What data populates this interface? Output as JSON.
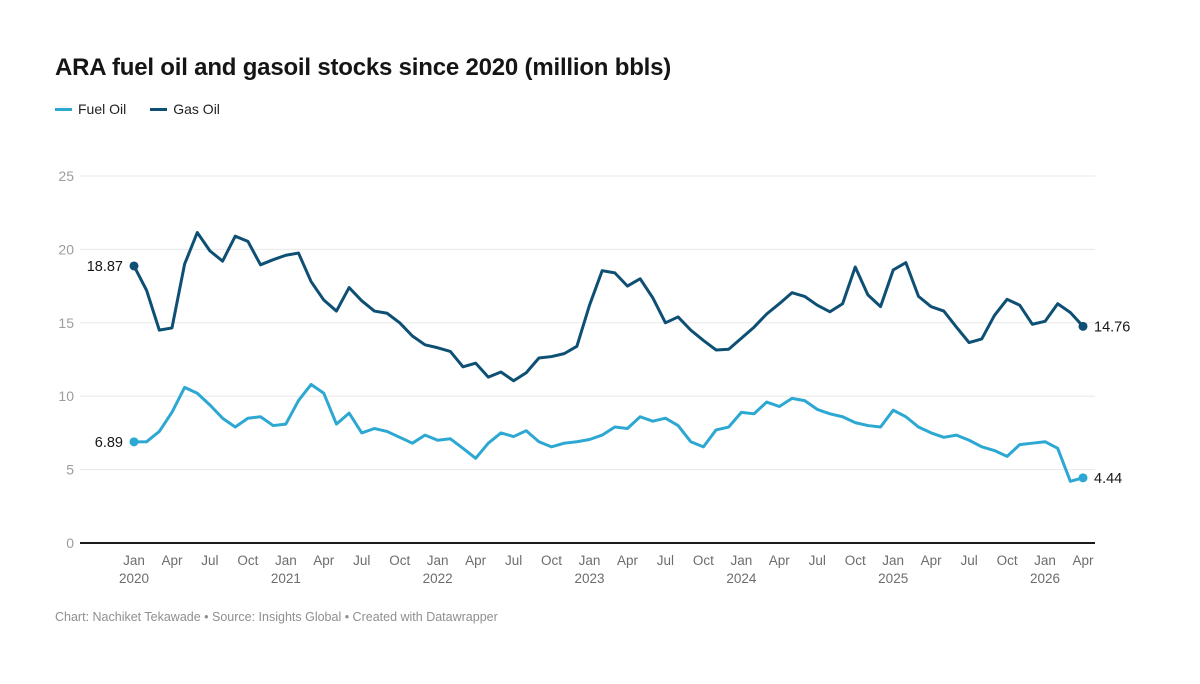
{
  "header": {
    "title": "ARA fuel oil and gasoil stocks since 2020 (million bbls)"
  },
  "legend": [
    {
      "label": "Fuel Oil",
      "color": "#2ca8d2"
    },
    {
      "label": "Gas Oil",
      "color": "#0e4f74"
    }
  ],
  "chart_data": {
    "type": "line",
    "title": "ARA fuel oil and gasoil stocks since 2020 (million bbls)",
    "xlabel": "",
    "ylabel": "",
    "frequency": "monthly",
    "x_start": "2020-01",
    "x_end": "2026-04",
    "ylim": [
      0,
      25
    ],
    "yticks": [
      0,
      5,
      10,
      15,
      20,
      25
    ],
    "grid": "horizontal",
    "legend_position": "top-left",
    "x_ticks": [
      {
        "month_index": 0,
        "label": "Jan",
        "year": "2020"
      },
      {
        "month_index": 3,
        "label": "Apr"
      },
      {
        "month_index": 6,
        "label": "Jul"
      },
      {
        "month_index": 9,
        "label": "Oct"
      },
      {
        "month_index": 12,
        "label": "Jan",
        "year": "2021"
      },
      {
        "month_index": 15,
        "label": "Apr"
      },
      {
        "month_index": 18,
        "label": "Jul"
      },
      {
        "month_index": 21,
        "label": "Oct"
      },
      {
        "month_index": 24,
        "label": "Jan",
        "year": "2022"
      },
      {
        "month_index": 27,
        "label": "Apr"
      },
      {
        "month_index": 30,
        "label": "Jul"
      },
      {
        "month_index": 33,
        "label": "Oct"
      },
      {
        "month_index": 36,
        "label": "Jan",
        "year": "2023"
      },
      {
        "month_index": 39,
        "label": "Apr"
      },
      {
        "month_index": 42,
        "label": "Jul"
      },
      {
        "month_index": 45,
        "label": "Oct"
      },
      {
        "month_index": 48,
        "label": "Jan",
        "year": "2024"
      },
      {
        "month_index": 51,
        "label": "Apr"
      },
      {
        "month_index": 54,
        "label": "Jul"
      },
      {
        "month_index": 57,
        "label": "Oct"
      },
      {
        "month_index": 60,
        "label": "Jan",
        "year": "2025"
      },
      {
        "month_index": 63,
        "label": "Apr"
      },
      {
        "month_index": 66,
        "label": "Jul"
      },
      {
        "month_index": 69,
        "label": "Oct"
      },
      {
        "month_index": 72,
        "label": "Jan",
        "year": "2026"
      },
      {
        "month_index": 75,
        "label": "Apr"
      }
    ],
    "series": [
      {
        "name": "Fuel Oil",
        "color": "#2ca8d2",
        "start_label": "6.89",
        "end_label": "4.44",
        "values": [
          6.89,
          6.9,
          7.6,
          8.9,
          10.6,
          10.2,
          9.4,
          8.5,
          7.9,
          8.5,
          8.6,
          8.0,
          8.1,
          9.7,
          10.8,
          10.2,
          8.1,
          8.85,
          7.5,
          7.8,
          7.6,
          7.2,
          6.8,
          7.35,
          7.0,
          7.1,
          6.45,
          5.77,
          6.8,
          7.5,
          7.25,
          7.65,
          6.9,
          6.55,
          6.8,
          6.9,
          7.05,
          7.35,
          7.9,
          7.8,
          8.6,
          8.3,
          8.5,
          8.0,
          6.9,
          6.55,
          7.7,
          7.9,
          8.9,
          8.8,
          9.6,
          9.3,
          9.85,
          9.7,
          9.1,
          8.8,
          8.6,
          8.2,
          8.0,
          7.9,
          9.05,
          8.6,
          7.9,
          7.5,
          7.2,
          7.35,
          7.0,
          6.55,
          6.3,
          5.9,
          6.7,
          6.8,
          6.9,
          6.45,
          4.2,
          4.44
        ]
      },
      {
        "name": "Gas Oil",
        "color": "#0e4f74",
        "start_label": "18.87",
        "end_label": "14.76",
        "values": [
          18.87,
          17.2,
          14.5,
          14.65,
          19.0,
          21.15,
          19.9,
          19.2,
          20.9,
          20.55,
          18.95,
          19.3,
          19.6,
          19.75,
          17.8,
          16.55,
          15.8,
          17.4,
          16.5,
          15.8,
          15.65,
          15.0,
          14.1,
          13.5,
          13.3,
          13.05,
          12.0,
          12.25,
          11.3,
          11.65,
          11.05,
          11.6,
          12.6,
          12.7,
          12.9,
          13.4,
          16.2,
          18.55,
          18.4,
          17.5,
          18.0,
          16.7,
          15.0,
          15.4,
          14.5,
          13.8,
          13.15,
          13.2,
          13.95,
          14.7,
          15.6,
          16.3,
          17.05,
          16.8,
          16.2,
          15.75,
          16.3,
          18.8,
          16.9,
          16.1,
          18.6,
          19.1,
          16.8,
          16.1,
          15.8,
          14.7,
          13.65,
          13.9,
          15.5,
          16.6,
          16.2,
          14.9,
          15.1,
          16.3,
          15.7,
          14.76
        ]
      }
    ]
  },
  "footer": {
    "text": "Chart: Nachiket Tekawade • Source: Insights Global • Created with Datawrapper"
  }
}
